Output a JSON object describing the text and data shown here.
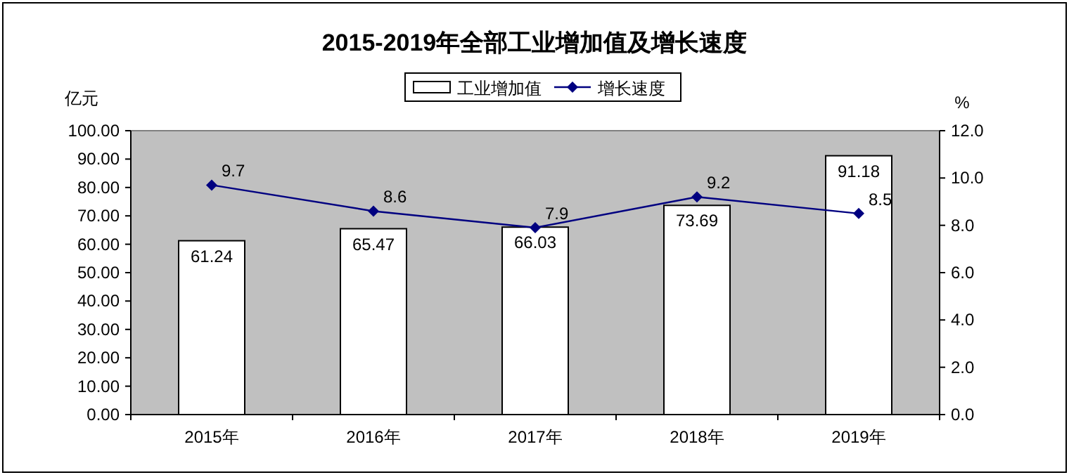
{
  "chart_data": {
    "type": "bar",
    "title": "2015-2019年全部工业增加值及增长速度",
    "categories": [
      "2015年",
      "2016年",
      "2017年",
      "2018年",
      "2019年"
    ],
    "series": [
      {
        "name": "工业增加值",
        "color": "#ffffff",
        "values": [
          61.24,
          65.47,
          66.03,
          73.69,
          91.18
        ]
      },
      {
        "name": "增长速度",
        "type": "line",
        "axis": "y2",
        "color": "#000080",
        "marker": "diamond",
        "values": [
          9.7,
          8.6,
          7.9,
          9.2,
          8.5
        ]
      }
    ],
    "ylabel": "亿元",
    "y2label": "%",
    "ylim": [
      0,
      100
    ],
    "yticks": [
      {
        "value": 0,
        "label": "0.00"
      },
      {
        "value": 10,
        "label": "10.00"
      },
      {
        "value": 20,
        "label": "20.00"
      },
      {
        "value": 30,
        "label": "30.00"
      },
      {
        "value": 40,
        "label": "40.00"
      },
      {
        "value": 50,
        "label": "50.00"
      },
      {
        "value": 60,
        "label": "60.00"
      },
      {
        "value": 70,
        "label": "70.00"
      },
      {
        "value": 80,
        "label": "80.00"
      },
      {
        "value": 90,
        "label": "90.00"
      },
      {
        "value": 100,
        "label": "100.00"
      }
    ],
    "y2lim": [
      0,
      12
    ],
    "y2ticks": [
      {
        "value": 0,
        "label": "0.0"
      },
      {
        "value": 2,
        "label": "2.0"
      },
      {
        "value": 4,
        "label": "4.0"
      },
      {
        "value": 6,
        "label": "6.0"
      },
      {
        "value": 8,
        "label": "8.0"
      },
      {
        "value": 10,
        "label": "10.0"
      },
      {
        "value": 12,
        "label": "12.0"
      }
    ],
    "data_labels": true,
    "legend": "top",
    "grid": false
  }
}
